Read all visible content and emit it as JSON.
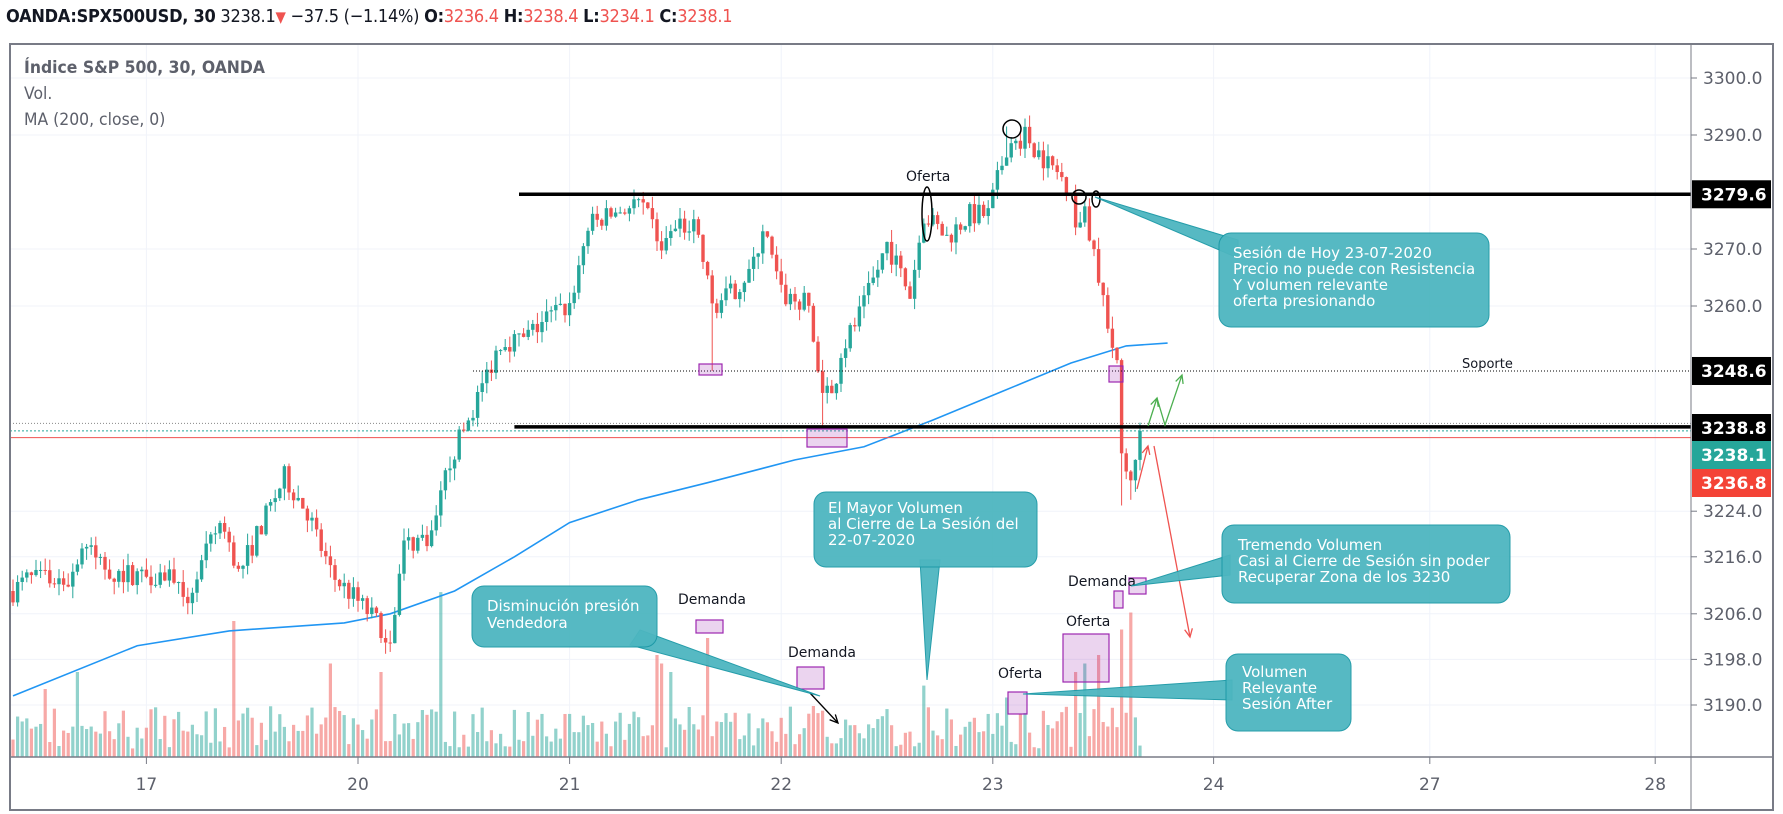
{
  "header": {
    "symbol": "OANDA:SPX500USD, 30",
    "last": "3238.1",
    "change": "−37.5 (−1.14%)",
    "o_label": "O:",
    "o": "3236.4",
    "h_label": "H:",
    "h": "3238.4",
    "l_label": "L:",
    "l": "3234.1",
    "c_label": "C:",
    "c": "3238.1"
  },
  "legend": {
    "title": "Índice S&P 500, 30, OANDA",
    "vol": "Vol.",
    "ma": "MA (200, close, 0)"
  },
  "colors": {
    "up": "#26a69a",
    "down": "#ef5350",
    "ma": "#2196f3",
    "callout": "#4db6c0",
    "callout_border": "#1a98a6",
    "box": "#9c27b0"
  },
  "chart_data": {
    "type": "candlestick",
    "title": "Índice S&P 500, 30, OANDA",
    "ylim": [
      3186,
      3306
    ],
    "y_ticks": [
      "3300.0",
      "3290.0",
      "3270.0",
      "3260.0",
      "3224.0",
      "3216.0",
      "3206.0",
      "3198.0",
      "3190.0"
    ],
    "y_tick_values": [
      3300,
      3290,
      3270,
      3260,
      3224,
      3216,
      3206,
      3198,
      3190
    ],
    "price_badges": [
      {
        "label": "3279.6",
        "value": 3279.6,
        "color": "#000000"
      },
      {
        "label": "3248.6",
        "value": 3248.6,
        "color": "#000000"
      },
      {
        "label": "3238.8",
        "value": 3238.8,
        "color": "#000000"
      },
      {
        "label": "3238.1",
        "value": 3238.1,
        "color": "#26a69a"
      },
      {
        "label": "3236.8",
        "value": 3236.8,
        "color": "#f44336"
      }
    ],
    "x_ticks": [
      {
        "label": "17",
        "bar": 29
      },
      {
        "label": "20",
        "bar": 75
      },
      {
        "label": "21",
        "bar": 121
      },
      {
        "label": "22",
        "bar": 167
      },
      {
        "label": "23",
        "bar": 213
      },
      {
        "label": "24",
        "bar": 261
      },
      {
        "label": "27",
        "bar": 308
      },
      {
        "label": "28",
        "bar": 357
      }
    ],
    "bar_count": 246,
    "close_path": [
      [
        0,
        3210
      ],
      [
        3,
        3212
      ],
      [
        12,
        3212
      ],
      [
        15,
        3218
      ],
      [
        22,
        3213
      ],
      [
        35,
        3213
      ],
      [
        37,
        3207
      ],
      [
        45,
        3222
      ],
      [
        49,
        3213
      ],
      [
        59,
        3230
      ],
      [
        64,
        3224
      ],
      [
        69,
        3213
      ],
      [
        74,
        3209
      ],
      [
        82,
        3202
      ],
      [
        85,
        3218
      ],
      [
        91,
        3220
      ],
      [
        95,
        3233
      ],
      [
        99,
        3240
      ],
      [
        102,
        3246
      ],
      [
        106,
        3254
      ],
      [
        111,
        3254
      ],
      [
        116,
        3258
      ],
      [
        121,
        3260
      ],
      [
        125,
        3274
      ],
      [
        131,
        3276.5
      ],
      [
        136,
        3278
      ],
      [
        141,
        3271
      ],
      [
        146,
        3274
      ],
      [
        148,
        3276
      ],
      [
        152,
        3260
      ],
      [
        156,
        3262
      ],
      [
        161,
        3267
      ],
      [
        163,
        3274
      ],
      [
        167,
        3262
      ],
      [
        173,
        3260
      ],
      [
        175,
        3248
      ],
      [
        178,
        3244
      ],
      [
        180,
        3252
      ],
      [
        185,
        3260
      ],
      [
        190,
        3271
      ],
      [
        195,
        3262
      ],
      [
        198,
        3276
      ],
      [
        203,
        3272
      ],
      [
        208,
        3276
      ],
      [
        212,
        3276
      ],
      [
        216,
        3288
      ],
      [
        220,
        3290
      ],
      [
        225,
        3285
      ],
      [
        230,
        3281
      ],
      [
        231,
        3274
      ],
      [
        233,
        3276
      ],
      [
        236,
        3266
      ],
      [
        238,
        3257
      ],
      [
        240,
        3249
      ],
      [
        241,
        3234
      ],
      [
        243,
        3230
      ],
      [
        245,
        3238.1
      ]
    ],
    "wick_extremes": [
      [
        152,
        3248.6
      ],
      [
        176,
        3239
      ],
      [
        216,
        3291.5
      ],
      [
        221,
        3293
      ],
      [
        241,
        3225
      ],
      [
        243,
        3226
      ]
    ],
    "ma200": [
      [
        0,
        3191.6
      ],
      [
        27,
        3200.4
      ],
      [
        47,
        3203
      ],
      [
        72,
        3204.4
      ],
      [
        82,
        3206
      ],
      [
        96,
        3210
      ],
      [
        109,
        3216
      ],
      [
        121,
        3222
      ],
      [
        136,
        3226
      ],
      [
        151,
        3229
      ],
      [
        170,
        3233
      ],
      [
        185,
        3235.3
      ],
      [
        200,
        3240
      ],
      [
        215,
        3245
      ],
      [
        230,
        3250
      ],
      [
        242,
        3253
      ],
      [
        251,
        3253.5
      ]
    ],
    "volume_spikes": [
      [
        7,
        0.4
      ],
      [
        14,
        0.5
      ],
      [
        48,
        0.8
      ],
      [
        69,
        0.55
      ],
      [
        80,
        0.5
      ],
      [
        93,
        0.97
      ],
      [
        140,
        0.6
      ],
      [
        141,
        0.55
      ],
      [
        143,
        0.5
      ],
      [
        151,
        0.7
      ],
      [
        174,
        0.3
      ],
      [
        198,
        0.42
      ],
      [
        216,
        0.35
      ],
      [
        231,
        0.5
      ],
      [
        233,
        0.55
      ],
      [
        236,
        0.6
      ],
      [
        241,
        0.75
      ],
      [
        243,
        0.85
      ]
    ],
    "levels": [
      {
        "name": "resistencia",
        "value": 3279.6,
        "from_bar": 110,
        "style": "solid"
      },
      {
        "name": "soporte",
        "value": 3248.6,
        "from_bar": 100,
        "style": "dotted",
        "label": "Soporte"
      },
      {
        "name": "zona",
        "value": 3238.8,
        "from_bar": 109,
        "style": "solid"
      }
    ],
    "annotations": {
      "sesion_hoy": [
        "Sesión de Hoy 23-07-2020",
        "Precio no puede con Resistencia",
        "Y volumen relevante",
        "oferta presionando"
      ],
      "mayor_volumen": [
        "El Mayor Volumen",
        "al Cierre de La Sesión del",
        "22-07-2020"
      ],
      "disminucion": [
        "Disminución presión",
        "Vendedora"
      ],
      "tremendo": [
        "Tremendo Volumen",
        "Casi al Cierre de Sesión sin poder",
        "Recuperar Zona de los 3230"
      ],
      "after": [
        "Volumen",
        "Relevante",
        "Sesión After"
      ],
      "labels": {
        "oferta": "Oferta",
        "demanda": "Demanda",
        "soporte": "Soporte"
      }
    }
  }
}
